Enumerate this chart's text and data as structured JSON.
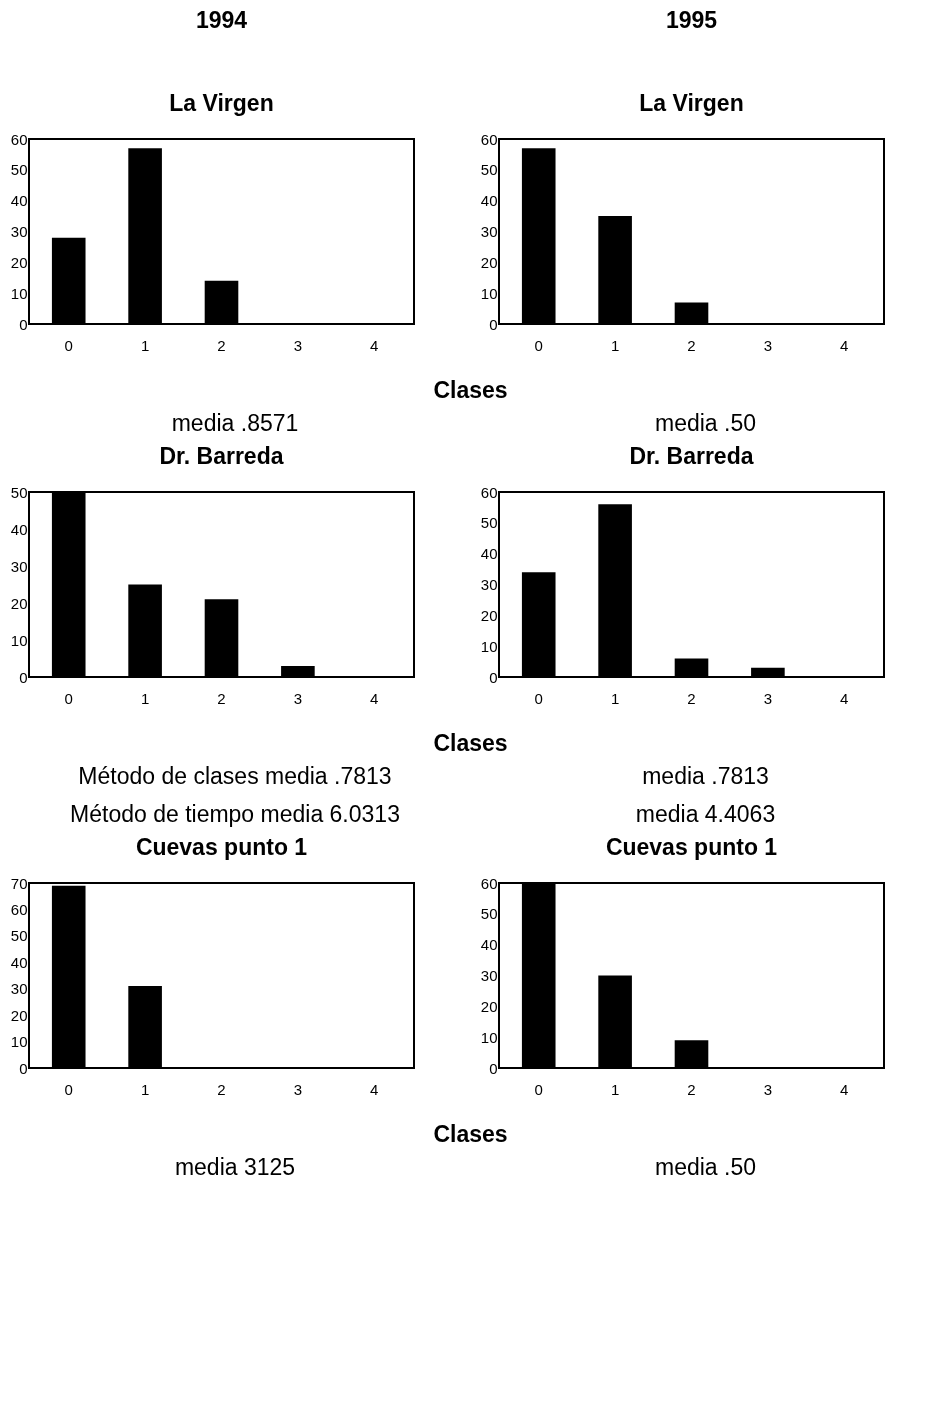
{
  "chart_data": [
    {
      "type": "bar",
      "title": "1994",
      "subtitle": "La Virgen",
      "xlabel": "Clases",
      "categories": [
        "0",
        "1",
        "2",
        "3",
        "4"
      ],
      "values": [
        28,
        57,
        14,
        0,
        0
      ],
      "color": "#000000",
      "ylim": [
        0,
        60
      ],
      "yticks": [
        0,
        10,
        20,
        30,
        40,
        50,
        60
      ],
      "annotations": [
        "media .8571"
      ]
    },
    {
      "type": "bar",
      "title": "1995",
      "subtitle": "La Virgen",
      "categories": [
        "0",
        "1",
        "2",
        "3",
        "4"
      ],
      "values": [
        57,
        35,
        7,
        0,
        0
      ],
      "color": "#000000",
      "ylim": [
        0,
        60
      ],
      "yticks": [
        0,
        10,
        20,
        30,
        40,
        50,
        60
      ],
      "annotations": [
        "media .50"
      ]
    },
    {
      "type": "bar",
      "title": "Dr. Barreda",
      "xlabel": "Clases",
      "categories": [
        "0",
        "1",
        "2",
        "3",
        "4"
      ],
      "values": [
        50,
        25,
        21,
        3,
        0
      ],
      "color": "#000000",
      "ylim": [
        0,
        50
      ],
      "yticks": [
        0,
        10,
        20,
        30,
        40,
        50
      ],
      "annotations": [
        "Método de clases media .7813",
        "Método de tiempo media 6.0313"
      ]
    },
    {
      "type": "bar",
      "title": "Dr. Barreda",
      "categories": [
        "0",
        "1",
        "2",
        "3",
        "4"
      ],
      "values": [
        34,
        56,
        6,
        3,
        0
      ],
      "color": "#000000",
      "ylim": [
        0,
        60
      ],
      "yticks": [
        0,
        10,
        20,
        30,
        40,
        50,
        60
      ],
      "annotations": [
        "media .7813",
        "media 4.4063"
      ]
    },
    {
      "type": "bar",
      "title": "Cuevas punto 1",
      "xlabel": "Clases",
      "categories": [
        "0",
        "1",
        "2",
        "3",
        "4"
      ],
      "values": [
        69,
        31,
        0,
        0,
        0
      ],
      "color": "#000000",
      "ylim": [
        0,
        70
      ],
      "yticks": [
        0,
        10,
        20,
        30,
        40,
        50,
        60,
        70
      ],
      "annotations": [
        "media 3125"
      ]
    },
    {
      "type": "bar",
      "title": "Cuevas punto 1",
      "categories": [
        "0",
        "1",
        "2",
        "3",
        "4"
      ],
      "values": [
        60,
        30,
        9,
        0,
        0
      ],
      "color": "#000000",
      "ylim": [
        0,
        60
      ],
      "yticks": [
        0,
        10,
        20,
        30,
        40,
        50,
        60
      ],
      "annotations": [
        "media .50"
      ]
    }
  ]
}
